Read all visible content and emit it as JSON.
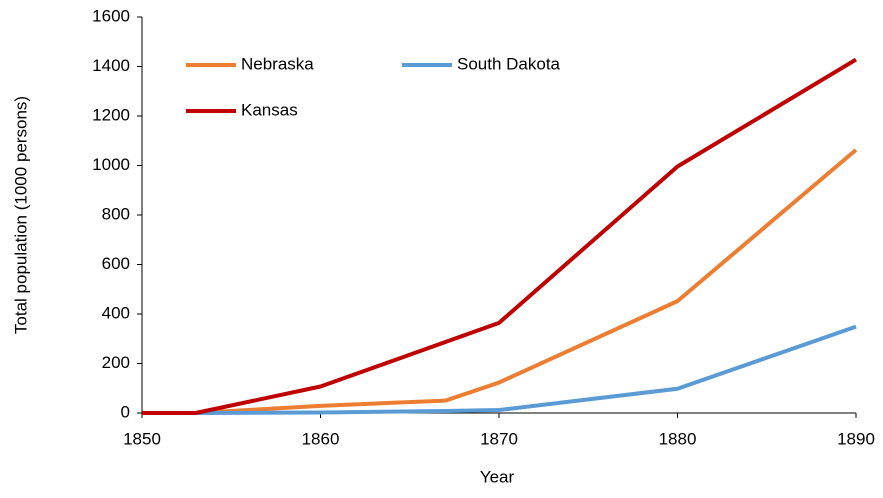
{
  "chart_data": {
    "type": "line",
    "x_label": "Year",
    "y_label": "Total population (1000 persons)",
    "x": [
      1850,
      1853,
      1860,
      1867,
      1870,
      1880,
      1890
    ],
    "series": [
      {
        "name": "Nebraska",
        "color": "#ed7d31",
        "values": [
          0,
          0,
          29,
          50,
          123,
          452,
          1063
        ]
      },
      {
        "name": "South Dakota",
        "color": "#5b9bd5",
        "values": [
          0,
          0,
          2,
          8,
          12,
          98,
          349
        ]
      },
      {
        "name": "Kansas",
        "color": "#c00000",
        "values": [
          0,
          0,
          107,
          287,
          364,
          996,
          1428
        ]
      }
    ],
    "xlim": [
      1850,
      1890
    ],
    "xticks": [
      1850,
      1860,
      1870,
      1880,
      1890
    ],
    "ylim": [
      0,
      1600
    ],
    "yticks": [
      0,
      200,
      400,
      600,
      800,
      1000,
      1200,
      1400,
      1600
    ],
    "grid": false,
    "legend": "top-left"
  }
}
